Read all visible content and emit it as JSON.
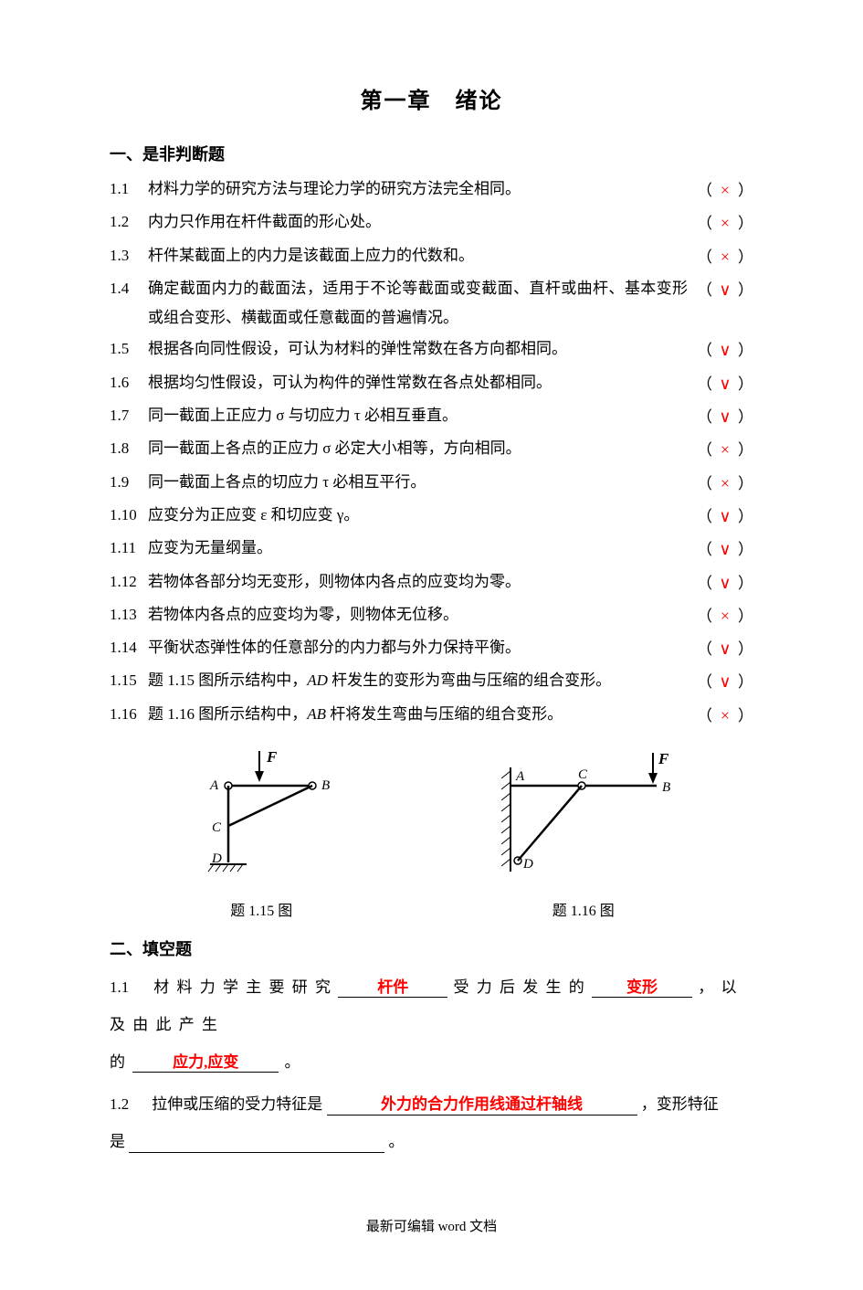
{
  "chapter_title": "第一章　绪论",
  "section1_title": "一、是非判断题",
  "section2_title": "二、填空题",
  "colors": {
    "answer": "#ff0000",
    "text": "#000000",
    "background": "#ffffff"
  },
  "true_false": [
    {
      "num": "1.1",
      "text": "材料力学的研究方法与理论力学的研究方法完全相同。",
      "answer": "×"
    },
    {
      "num": "1.2",
      "text": "内力只作用在杆件截面的形心处。",
      "answer": "×"
    },
    {
      "num": "1.3",
      "text": "杆件某截面上的内力是该截面上应力的代数和。",
      "answer": "×"
    },
    {
      "num": "1.4",
      "text": "确定截面内力的截面法，适用于不论等截面或变截面、直杆或曲杆、基本变形或组合变形、横截面或任意截面的普遍情况。",
      "answer": "∨"
    },
    {
      "num": "1.5",
      "text": "根据各向同性假设，可认为材料的弹性常数在各方向都相同。",
      "answer": "∨"
    },
    {
      "num": "1.6",
      "text": "根据均匀性假设，可认为构件的弹性常数在各点处都相同。",
      "answer": "∨"
    },
    {
      "num": "1.7",
      "text": "同一截面上正应力 σ 与切应力 τ 必相互垂直。",
      "answer": "∨"
    },
    {
      "num": "1.8",
      "text": "同一截面上各点的正应力 σ 必定大小相等，方向相同。",
      "answer": "×"
    },
    {
      "num": "1.9",
      "text": "同一截面上各点的切应力 τ 必相互平行。",
      "answer": "×"
    },
    {
      "num": "1.10",
      "text": "应变分为正应变 ε 和切应变 γ。",
      "answer": "∨"
    },
    {
      "num": "1.11",
      "text": "应变为无量纲量。",
      "answer": "∨"
    },
    {
      "num": "1.12",
      "text": "若物体各部分均无变形，则物体内各点的应变均为零。",
      "answer": "∨"
    },
    {
      "num": "1.13",
      "text": "若物体内各点的应变均为零，则物体无位移。",
      "answer": "×"
    },
    {
      "num": "1.14",
      "text": "平衡状态弹性体的任意部分的内力都与外力保持平衡。",
      "answer": "∨"
    },
    {
      "num": "1.15",
      "text_pre": "题 1.15 图所示结构中，",
      "ital": "AD",
      "text_post": " 杆发生的变形为弯曲与压缩的组合变形。",
      "answer": "∨"
    },
    {
      "num": "1.16",
      "text_pre": "题 1.16 图所示结构中，",
      "ital": "AB",
      "text_post": " 杆将发生弯曲与压缩的组合变形。",
      "answer": "×"
    }
  ],
  "fig115": {
    "caption": "题 1.15 图",
    "labels": {
      "A": "A",
      "B": "B",
      "C": "C",
      "D": "D",
      "F": "F"
    }
  },
  "fig116": {
    "caption": "题 1.16 图",
    "labels": {
      "A": "A",
      "B": "B",
      "C": "C",
      "D": "D",
      "F": "F"
    }
  },
  "fill": {
    "q1": {
      "num": "1.1",
      "t1": "材 料 力 学 主 要 研 究",
      "a1": "杆件",
      "t2": "受 力 后 发 生 的",
      "a2": "变形",
      "t3": "， 以 及 由 此 产 生",
      "t4": "的",
      "a3": "应力,应变",
      "t5": "。"
    },
    "q2": {
      "num": "1.2",
      "t1": "拉伸或压缩的受力特征是",
      "a1": "外力的合力作用线通过杆轴线",
      "t2": "，变形特征",
      "t3": "是",
      "t4": "。"
    }
  },
  "footer": "最新可编辑 word 文档"
}
